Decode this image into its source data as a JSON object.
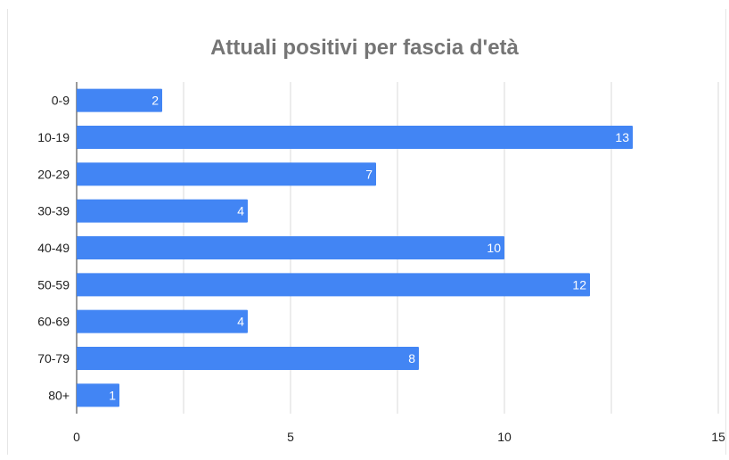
{
  "chart_data": {
    "type": "bar",
    "orientation": "horizontal",
    "title": "Attuali positivi per fascia d'età",
    "categories": [
      "0-9",
      "10-19",
      "20-29",
      "30-39",
      "40-49",
      "50-59",
      "60-69",
      "70-79",
      "80+"
    ],
    "values": [
      2,
      13,
      7,
      4,
      10,
      12,
      4,
      8,
      1
    ],
    "xlim": [
      0,
      15
    ],
    "x_ticks": [
      "0",
      "5",
      "10",
      "15"
    ],
    "grid": true,
    "data_labels": true,
    "bar_color": "#4285f4"
  }
}
